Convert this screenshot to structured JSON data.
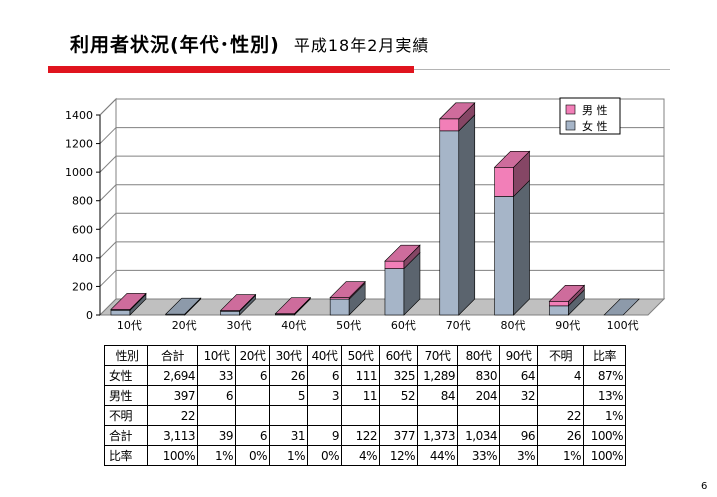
{
  "header": {
    "title": "利用者状況(年代･性別)",
    "subtitle": "平成18年2月実績"
  },
  "page_number": "6",
  "colors": {
    "female": "#a6b5c8",
    "male": "#f27fb8",
    "accent_red": "#e0141e"
  },
  "chart_data": {
    "type": "bar",
    "stacked": true,
    "three_d": true,
    "categories": [
      "10代",
      "20代",
      "30代",
      "40代",
      "50代",
      "60代",
      "70代",
      "80代",
      "90代",
      "100代"
    ],
    "series": [
      {
        "name": "女 性",
        "values": [
          33,
          6,
          26,
          6,
          111,
          325,
          1289,
          830,
          64,
          0
        ]
      },
      {
        "name": "男 性",
        "values": [
          6,
          0,
          5,
          3,
          11,
          52,
          84,
          204,
          32,
          0
        ]
      }
    ],
    "legend_order": [
      "男 性",
      "女 性"
    ],
    "ylim": [
      0,
      1400
    ],
    "yticks": [
      0,
      200,
      400,
      600,
      800,
      1000,
      1200,
      1400
    ],
    "grid": true,
    "legend_position": "top-right"
  },
  "table": {
    "header": [
      "性別",
      "合計",
      "10代",
      "20代",
      "30代",
      "40代",
      "50代",
      "60代",
      "70代",
      "80代",
      "90代",
      "不明",
      "比率"
    ],
    "rows": [
      [
        "女性",
        "2,694",
        "33",
        "6",
        "26",
        "6",
        "111",
        "325",
        "1,289",
        "830",
        "64",
        "4",
        "87%"
      ],
      [
        "男性",
        "397",
        "6",
        "",
        "5",
        "3",
        "11",
        "52",
        "84",
        "204",
        "32",
        "",
        "13%"
      ],
      [
        "不明",
        "22",
        "",
        "",
        "",
        "",
        "",
        "",
        "",
        "",
        "",
        "22",
        "1%"
      ],
      [
        "合計",
        "3,113",
        "39",
        "6",
        "31",
        "9",
        "122",
        "377",
        "1,373",
        "1,034",
        "96",
        "26",
        "100%"
      ],
      [
        "比率",
        "100%",
        "1%",
        "0%",
        "1%",
        "0%",
        "4%",
        "12%",
        "44%",
        "33%",
        "3%",
        "1%",
        "100%"
      ]
    ]
  }
}
